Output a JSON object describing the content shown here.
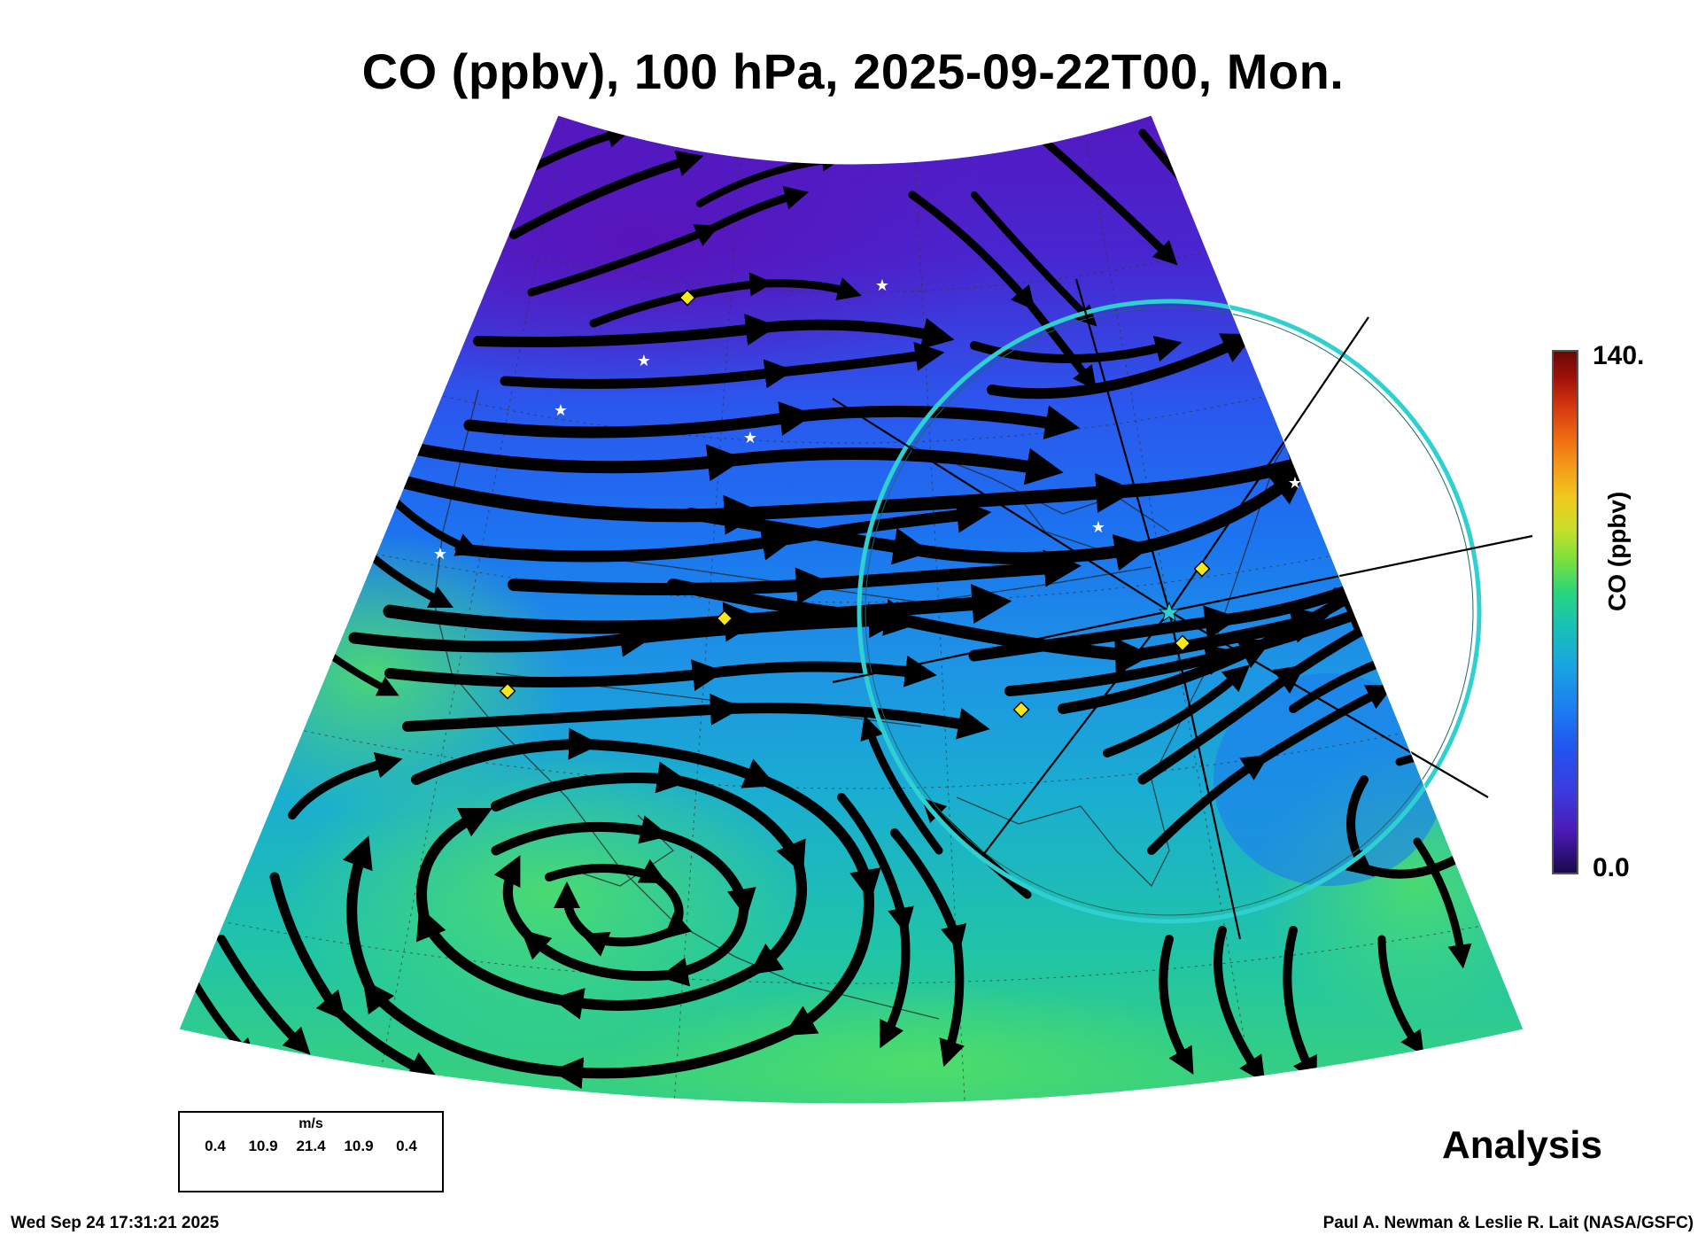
{
  "title": "CO (ppbv), 100 hPa, 2025-09-22T00, Mon.",
  "colorbar": {
    "max_label": "140.",
    "min_label": "0.0",
    "label": "CO (ppbv)",
    "min": 0.0,
    "max": 140.0
  },
  "wind_legend": {
    "units": "m/s",
    "values": [
      "0.4",
      "10.9",
      "21.4",
      "10.9",
      "0.4"
    ]
  },
  "mode_label": "Analysis",
  "timestamp": "Wed Sep 24 17:31:21 2025",
  "credit": "Paul A. Newman & Leslie R. Lait (NASA/GSFC)",
  "colors": {
    "low_co": "#4b1ab8",
    "mid_co": "#1b80f0",
    "high_co": "#2ad67a",
    "streamline": "#000000",
    "range_ring": "#2fd0d0",
    "site_marker": "#f6e81a"
  }
}
